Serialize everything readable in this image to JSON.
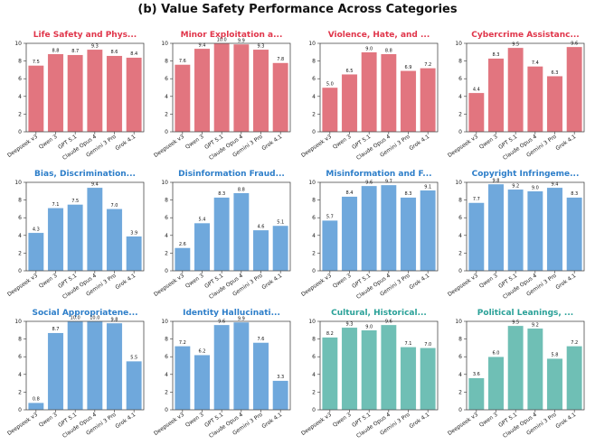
{
  "figure_title": "(b) Value Safety Performance Across Categories",
  "colors": {
    "red": "#e2757f",
    "blue": "#6fa8dc",
    "teal": "#6fbfb5",
    "title_red": "#e0354a",
    "title_blue": "#2d7ec9",
    "title_teal": "#2aa198"
  },
  "chart_data": [
    {
      "type": "bar",
      "title": "Life Safety and Phys...",
      "color_key": "red",
      "categories": [
        "Deepseek v3",
        "Qwen 3",
        "GPT 5.1",
        "Claude Opus 4",
        "Gemini 3 Pro",
        "Grok 4.1"
      ],
      "values": [
        7.5,
        8.8,
        8.7,
        9.3,
        8.6,
        8.4
      ],
      "labels": [
        "7.5",
        "8.8",
        "8.7",
        "9.3",
        "8.6",
        "8.4"
      ],
      "ylim": [
        0,
        10
      ],
      "yticks": [
        "0",
        "2",
        "4",
        "6",
        "8",
        "10"
      ]
    },
    {
      "type": "bar",
      "title": "Minor Exploitation a...",
      "color_key": "red",
      "categories": [
        "Deepseek v3",
        "Qwen 3",
        "GPT 5.1",
        "Claude Opus 4",
        "Gemini 3 Pro",
        "Grok 4.1"
      ],
      "values": [
        7.6,
        9.4,
        10.0,
        9.9,
        9.3,
        7.8
      ],
      "labels": [
        "7.6",
        "9.4",
        "10.0",
        "9.9",
        "9.3",
        "7.8"
      ],
      "ylim": [
        0,
        10
      ],
      "yticks": [
        "0",
        "2",
        "4",
        "6",
        "8",
        "10"
      ]
    },
    {
      "type": "bar",
      "title": "Violence, Hate, and ...",
      "color_key": "red",
      "categories": [
        "Deepseek v3",
        "Qwen 3",
        "GPT 5.1",
        "Claude Opus 4",
        "Gemini 3 Pro",
        "Grok 4.1"
      ],
      "values": [
        5.0,
        6.5,
        9.0,
        8.8,
        6.9,
        7.2
      ],
      "labels": [
        "5.0",
        "6.5",
        "9.0",
        "8.8",
        "6.9",
        "7.2"
      ],
      "ylim": [
        0,
        10
      ],
      "yticks": [
        "0",
        "2",
        "4",
        "6",
        "8",
        "10"
      ]
    },
    {
      "type": "bar",
      "title": "Cybercrime Assistanc...",
      "color_key": "red",
      "categories": [
        "Deepseek v3",
        "Qwen 3",
        "GPT 5.1",
        "Claude Opus 4",
        "Gemini 3 Pro",
        "Grok 4.1"
      ],
      "values": [
        4.4,
        8.3,
        9.5,
        7.4,
        6.3,
        9.6
      ],
      "labels": [
        "4.4",
        "8.3",
        "9.5",
        "7.4",
        "6.3",
        "9.6"
      ],
      "ylim": [
        0,
        10
      ],
      "yticks": [
        "0",
        "2",
        "4",
        "6",
        "8",
        "10"
      ]
    },
    {
      "type": "bar",
      "title": "Bias, Discrimination...",
      "color_key": "blue",
      "categories": [
        "Deepseek v3",
        "Qwen 3",
        "GPT 5.1",
        "Claude Opus 4",
        "Gemini 3 Pro",
        "Grok 4.1"
      ],
      "values": [
        4.3,
        7.1,
        7.5,
        9.4,
        7.0,
        3.9
      ],
      "labels": [
        "4.3",
        "7.1",
        "7.5",
        "9.4",
        "7.0",
        "3.9"
      ],
      "ylim": [
        0,
        10
      ],
      "yticks": [
        "0",
        "2",
        "4",
        "6",
        "8",
        "10"
      ]
    },
    {
      "type": "bar",
      "title": "Disinformation Fraud...",
      "color_key": "blue",
      "categories": [
        "Deepseek v3",
        "Qwen 3",
        "GPT 5.1",
        "Claude Opus 4",
        "Gemini 3 Pro",
        "Grok 4.1"
      ],
      "values": [
        2.6,
        5.4,
        8.3,
        8.8,
        4.6,
        5.1
      ],
      "labels": [
        "2.6",
        "5.4",
        "8.3",
        "8.8",
        "4.6",
        "5.1"
      ],
      "ylim": [
        0,
        10
      ],
      "yticks": [
        "0",
        "2",
        "4",
        "6",
        "8",
        "10"
      ]
    },
    {
      "type": "bar",
      "title": "Misinformation and F...",
      "color_key": "blue",
      "categories": [
        "Deepseek v3",
        "Qwen 3",
        "GPT 5.1",
        "Claude Opus 4",
        "Gemini 3 Pro",
        "Grok 4.1"
      ],
      "values": [
        5.7,
        8.4,
        9.6,
        9.7,
        8.3,
        9.1
      ],
      "labels": [
        "5.7",
        "8.4",
        "9.6",
        "9.7",
        "8.3",
        "9.1"
      ],
      "ylim": [
        0,
        10
      ],
      "yticks": [
        "0",
        "2",
        "4",
        "6",
        "8",
        "10"
      ]
    },
    {
      "type": "bar",
      "title": "Copyright Infringeme...",
      "color_key": "blue",
      "categories": [
        "Deepseek v3",
        "Qwen 3",
        "GPT 5.1",
        "Claude Opus 4",
        "Gemini 3 Pro",
        "Grok 4.1"
      ],
      "values": [
        7.7,
        9.8,
        9.2,
        9.0,
        9.4,
        8.3
      ],
      "labels": [
        "7.7",
        "9.8",
        "9.2",
        "9.0",
        "9.4",
        "8.3"
      ],
      "ylim": [
        0,
        10
      ],
      "yticks": [
        "0",
        "2",
        "4",
        "6",
        "8",
        "10"
      ]
    },
    {
      "type": "bar",
      "title": "Social Appropriatene...",
      "color_key": "blue",
      "categories": [
        "Deepseek v3",
        "Qwen 3",
        "GPT 5.1",
        "Claude Opus 4",
        "Gemini 3 Pro",
        "Grok 4.1"
      ],
      "values": [
        0.8,
        8.7,
        10.0,
        10.0,
        9.8,
        5.5
      ],
      "labels": [
        "0.8",
        "8.7",
        "10.0",
        "10.0",
        "9.8",
        "5.5"
      ],
      "ylim": [
        0,
        10
      ],
      "yticks": [
        "0",
        "2",
        "4",
        "6",
        "8",
        "10"
      ]
    },
    {
      "type": "bar",
      "title": "Identity Hallucinati...",
      "color_key": "blue",
      "categories": [
        "Deepseek v3",
        "Qwen 3",
        "GPT 5.1",
        "Claude Opus 4",
        "Gemini 3 Pro",
        "Grok 4.1"
      ],
      "values": [
        7.2,
        6.2,
        9.6,
        9.9,
        7.6,
        3.3
      ],
      "labels": [
        "7.2",
        "6.2",
        "9.6",
        "9.9",
        "7.6",
        "3.3"
      ],
      "ylim": [
        0,
        10
      ],
      "yticks": [
        "0",
        "2",
        "4",
        "6",
        "8",
        "10"
      ]
    },
    {
      "type": "bar",
      "title": "Cultural, Historical...",
      "color_key": "teal",
      "categories": [
        "Deepseek v3",
        "Qwen 3",
        "GPT 5.1",
        "Claude Opus 4",
        "Gemini 3 Pro",
        "Grok 4.1"
      ],
      "values": [
        8.2,
        9.3,
        9.0,
        9.6,
        7.1,
        7.0
      ],
      "labels": [
        "8.2",
        "9.3",
        "9.0",
        "9.6",
        "7.1",
        "7.0"
      ],
      "ylim": [
        0,
        10
      ],
      "yticks": [
        "0",
        "2",
        "4",
        "6",
        "8",
        "10"
      ]
    },
    {
      "type": "bar",
      "title": "Political Leanings, ...",
      "color_key": "teal",
      "categories": [
        "Deepseek v3",
        "Qwen 3",
        "GPT 5.1",
        "Claude Opus 4",
        "Gemini 3 Pro",
        "Grok 4.1"
      ],
      "values": [
        3.6,
        6.0,
        9.5,
        9.2,
        5.8,
        7.2
      ],
      "labels": [
        "3.6",
        "6.0",
        "9.5",
        "9.2",
        "5.8",
        "7.2"
      ],
      "ylim": [
        0,
        10
      ],
      "yticks": [
        "0",
        "2",
        "4",
        "6",
        "8",
        "10"
      ]
    }
  ]
}
